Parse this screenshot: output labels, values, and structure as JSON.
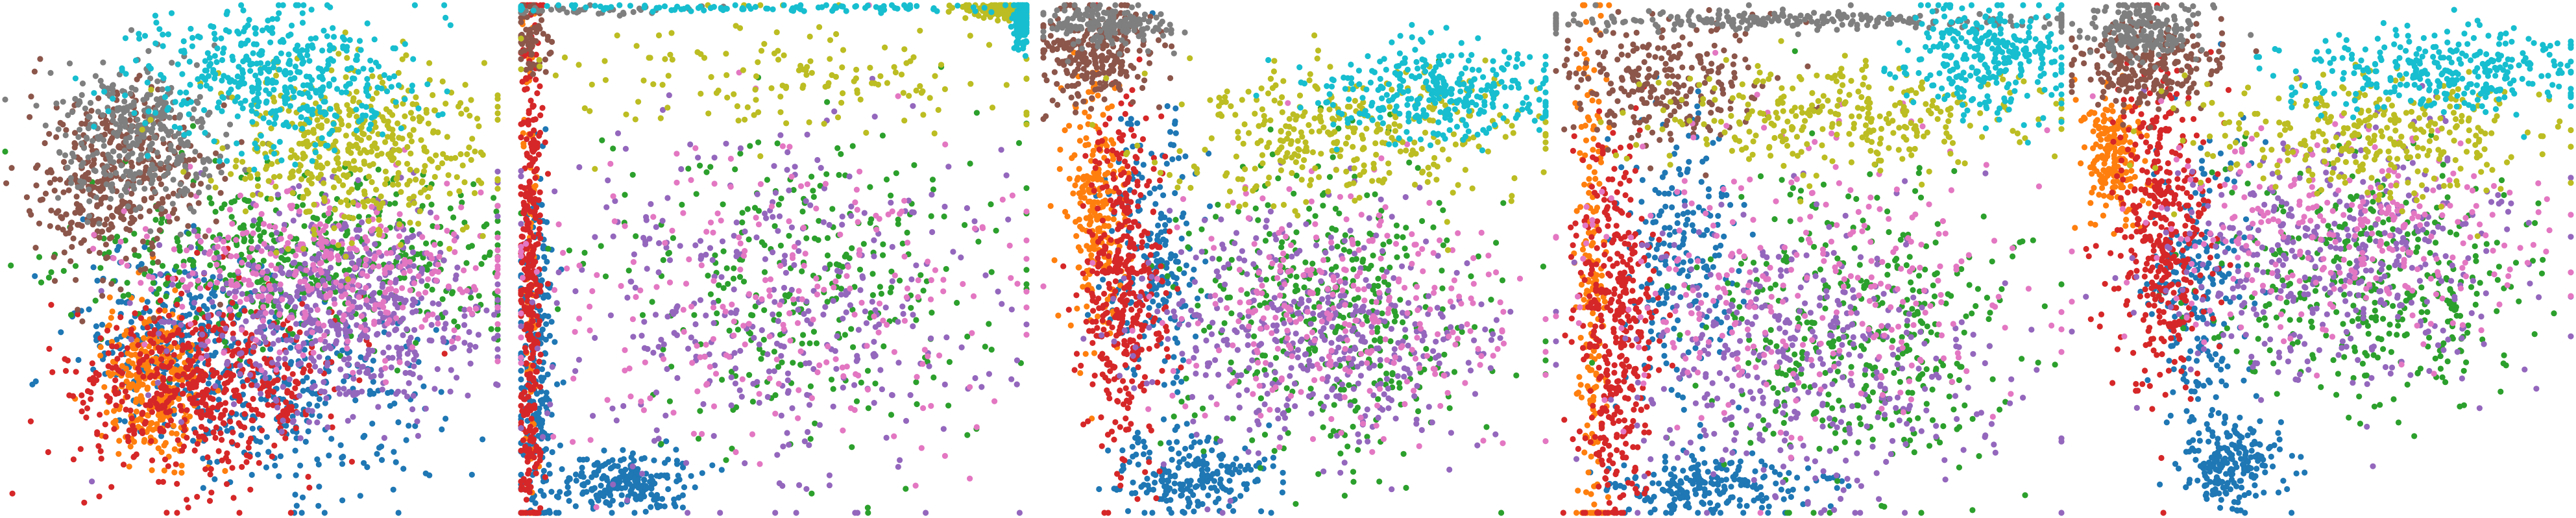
{
  "figure": {
    "title": "",
    "description_visible_text": ""
  },
  "colors": {
    "c0": "#1f77b4",
    "c1": "#ff7f0e",
    "c2": "#2ca02c",
    "c3": "#d62728",
    "c4": "#9467bd",
    "c5": "#8c564b",
    "c6": "#e377c2",
    "c7": "#7f7f7f",
    "c8": "#bcbd22",
    "c9": "#17becf"
  },
  "chart_data": [
    {
      "type": "scatter",
      "title": "",
      "xlabel": "",
      "ylabel": "",
      "axes_visible": false,
      "grid": false,
      "legend": "none",
      "xlim": [
        0,
        1
      ],
      "ylim": [
        0,
        1
      ],
      "series": [
        {
          "color": "#1f77b4",
          "count": 550,
          "regions": [
            {
              "cx": 0.58,
              "cy": 0.22,
              "sx": 0.15,
              "sy": 0.09
            },
            {
              "cx": 0.35,
              "cy": 0.36,
              "sx": 0.1,
              "sy": 0.08
            }
          ]
        },
        {
          "color": "#ff7f0e",
          "count": 300,
          "regions": [
            {
              "cx": 0.3,
              "cy": 0.25,
              "sx": 0.05,
              "sy": 0.08
            }
          ]
        },
        {
          "color": "#2ca02c",
          "count": 500,
          "regions": [
            {
              "cx": 0.62,
              "cy": 0.5,
              "sx": 0.22,
              "sy": 0.08
            }
          ]
        },
        {
          "color": "#d62728",
          "count": 550,
          "regions": [
            {
              "cx": 0.4,
              "cy": 0.25,
              "sx": 0.13,
              "sy": 0.09
            }
          ]
        },
        {
          "color": "#9467bd",
          "count": 600,
          "regions": [
            {
              "cx": 0.68,
              "cy": 0.4,
              "sx": 0.16,
              "sy": 0.11
            }
          ]
        },
        {
          "color": "#8c564b",
          "count": 400,
          "regions": [
            {
              "cx": 0.22,
              "cy": 0.66,
              "sx": 0.09,
              "sy": 0.08
            }
          ]
        },
        {
          "color": "#e377c2",
          "count": 350,
          "regions": [
            {
              "cx": 0.65,
              "cy": 0.48,
              "sx": 0.2,
              "sy": 0.08
            }
          ]
        },
        {
          "color": "#7f7f7f",
          "count": 350,
          "regions": [
            {
              "cx": 0.27,
              "cy": 0.74,
              "sx": 0.08,
              "sy": 0.07
            }
          ]
        },
        {
          "color": "#bcbd22",
          "count": 450,
          "regions": [
            {
              "cx": 0.7,
              "cy": 0.72,
              "sx": 0.14,
              "sy": 0.08
            }
          ]
        },
        {
          "color": "#17becf",
          "count": 450,
          "regions": [
            {
              "cx": 0.55,
              "cy": 0.86,
              "sx": 0.14,
              "sy": 0.07
            }
          ]
        }
      ]
    },
    {
      "type": "scatter",
      "title": "",
      "xlabel": "",
      "ylabel": "",
      "axes_visible": false,
      "grid": false,
      "legend": "none",
      "xlim": [
        0,
        1
      ],
      "ylim": [
        0,
        1
      ],
      "series": [
        {
          "color": "#1f77b4",
          "count": 450,
          "regions": [
            {
              "cx": 0.2,
              "cy": 0.06,
              "sx": 0.07,
              "sy": 0.03
            },
            {
              "cx": 0.03,
              "cy": 0.3,
              "sx": 0.02,
              "sy": 0.18
            }
          ]
        },
        {
          "color": "#ff7f0e",
          "count": 80,
          "regions": [
            {
              "cx": 0.015,
              "cy": 0.5,
              "sx": 0.008,
              "sy": 0.3
            }
          ]
        },
        {
          "color": "#2ca02c",
          "count": 300,
          "regions": [
            {
              "cx": 0.55,
              "cy": 0.45,
              "sx": 0.2,
              "sy": 0.15
            }
          ]
        },
        {
          "color": "#d62728",
          "count": 380,
          "regions": [
            {
              "cx": 0.02,
              "cy": 0.45,
              "sx": 0.012,
              "sy": 0.3
            }
          ]
        },
        {
          "color": "#9467bd",
          "count": 380,
          "regions": [
            {
              "cx": 0.48,
              "cy": 0.4,
              "sx": 0.22,
              "sy": 0.18
            }
          ]
        },
        {
          "color": "#8c564b",
          "count": 60,
          "regions": [
            {
              "cx": 0.02,
              "cy": 0.93,
              "sx": 0.02,
              "sy": 0.04
            }
          ]
        },
        {
          "color": "#e377c2",
          "count": 250,
          "regions": [
            {
              "cx": 0.5,
              "cy": 0.45,
              "sx": 0.25,
              "sy": 0.15
            }
          ]
        },
        {
          "color": "#7f7f7f",
          "count": 40,
          "regions": [
            {
              "cx": 0.15,
              "cy": 0.99,
              "sx": 0.12,
              "sy": 0.005
            }
          ]
        },
        {
          "color": "#bcbd22",
          "count": 300,
          "regions": [
            {
              "cx": 0.55,
              "cy": 0.85,
              "sx": 0.25,
              "sy": 0.06
            },
            {
              "cx": 0.95,
              "cy": 0.99,
              "sx": 0.04,
              "sy": 0.01
            }
          ]
        },
        {
          "color": "#17becf",
          "count": 220,
          "regions": [
            {
              "cx": 0.5,
              "cy": 0.995,
              "sx": 0.3,
              "sy": 0.004
            },
            {
              "cx": 0.99,
              "cy": 0.97,
              "sx": 0.01,
              "sy": 0.03
            }
          ]
        }
      ]
    },
    {
      "type": "scatter",
      "title": "",
      "xlabel": "",
      "ylabel": "",
      "axes_visible": false,
      "grid": false,
      "legend": "none",
      "xlim": [
        0,
        1
      ],
      "ylim": [
        0,
        1
      ],
      "series": [
        {
          "color": "#1f77b4",
          "count": 420,
          "regions": [
            {
              "cx": 0.3,
              "cy": 0.07,
              "sx": 0.08,
              "sy": 0.04
            },
            {
              "cx": 0.22,
              "cy": 0.5,
              "sx": 0.05,
              "sy": 0.15
            }
          ]
        },
        {
          "color": "#ff7f0e",
          "count": 250,
          "regions": [
            {
              "cx": 0.1,
              "cy": 0.6,
              "sx": 0.03,
              "sy": 0.12
            }
          ]
        },
        {
          "color": "#2ca02c",
          "count": 400,
          "regions": [
            {
              "cx": 0.58,
              "cy": 0.4,
              "sx": 0.15,
              "sy": 0.15
            }
          ]
        },
        {
          "color": "#d62728",
          "count": 400,
          "regions": [
            {
              "cx": 0.16,
              "cy": 0.45,
              "sx": 0.04,
              "sy": 0.18
            }
          ]
        },
        {
          "color": "#9467bd",
          "count": 450,
          "regions": [
            {
              "cx": 0.55,
              "cy": 0.35,
              "sx": 0.16,
              "sy": 0.12
            }
          ]
        },
        {
          "color": "#8c564b",
          "count": 250,
          "regions": [
            {
              "cx": 0.1,
              "cy": 0.9,
              "sx": 0.06,
              "sy": 0.05
            }
          ]
        },
        {
          "color": "#e377c2",
          "count": 300,
          "regions": [
            {
              "cx": 0.6,
              "cy": 0.4,
              "sx": 0.18,
              "sy": 0.12
            }
          ]
        },
        {
          "color": "#7f7f7f",
          "count": 180,
          "regions": [
            {
              "cx": 0.13,
              "cy": 0.96,
              "sx": 0.06,
              "sy": 0.02
            }
          ]
        },
        {
          "color": "#bcbd22",
          "count": 350,
          "regions": [
            {
              "cx": 0.6,
              "cy": 0.75,
              "sx": 0.18,
              "sy": 0.07
            }
          ]
        },
        {
          "color": "#17becf",
          "count": 320,
          "regions": [
            {
              "cx": 0.8,
              "cy": 0.83,
              "sx": 0.12,
              "sy": 0.05
            }
          ]
        }
      ]
    },
    {
      "type": "scatter",
      "title": "",
      "xlabel": "",
      "ylabel": "",
      "axes_visible": false,
      "grid": false,
      "legend": "none",
      "xlim": [
        0,
        1
      ],
      "ylim": [
        0,
        1
      ],
      "series": [
        {
          "color": "#1f77b4",
          "count": 420,
          "regions": [
            {
              "cx": 0.3,
              "cy": 0.05,
              "sx": 0.1,
              "sy": 0.03
            },
            {
              "cx": 0.25,
              "cy": 0.5,
              "sx": 0.06,
              "sy": 0.15
            }
          ]
        },
        {
          "color": "#ff7f0e",
          "count": 200,
          "regions": [
            {
              "cx": 0.07,
              "cy": 0.4,
              "sx": 0.015,
              "sy": 0.3
            }
          ]
        },
        {
          "color": "#2ca02c",
          "count": 400,
          "regions": [
            {
              "cx": 0.58,
              "cy": 0.35,
              "sx": 0.16,
              "sy": 0.15
            }
          ]
        },
        {
          "color": "#d62728",
          "count": 400,
          "regions": [
            {
              "cx": 0.12,
              "cy": 0.35,
              "sx": 0.04,
              "sy": 0.2
            }
          ]
        },
        {
          "color": "#9467bd",
          "count": 420,
          "regions": [
            {
              "cx": 0.5,
              "cy": 0.3,
              "sx": 0.18,
              "sy": 0.14
            }
          ]
        },
        {
          "color": "#8c564b",
          "count": 250,
          "regions": [
            {
              "cx": 0.22,
              "cy": 0.85,
              "sx": 0.1,
              "sy": 0.06
            }
          ]
        },
        {
          "color": "#e377c2",
          "count": 300,
          "regions": [
            {
              "cx": 0.5,
              "cy": 0.45,
              "sx": 0.22,
              "sy": 0.15
            }
          ]
        },
        {
          "color": "#7f7f7f",
          "count": 260,
          "regions": [
            {
              "cx": 0.45,
              "cy": 0.97,
              "sx": 0.35,
              "sy": 0.01
            }
          ]
        },
        {
          "color": "#bcbd22",
          "count": 300,
          "regions": [
            {
              "cx": 0.55,
              "cy": 0.78,
              "sx": 0.2,
              "sy": 0.05
            }
          ]
        },
        {
          "color": "#17becf",
          "count": 300,
          "regions": [
            {
              "cx": 0.85,
              "cy": 0.9,
              "sx": 0.08,
              "sy": 0.06
            }
          ]
        }
      ]
    },
    {
      "type": "scatter",
      "title": "",
      "xlabel": "",
      "ylabel": "",
      "axes_visible": false,
      "grid": false,
      "legend": "none",
      "xlim": [
        0,
        1
      ],
      "ylim": [
        0,
        1
      ],
      "series": [
        {
          "color": "#1f77b4",
          "count": 420,
          "regions": [
            {
              "cx": 0.32,
              "cy": 0.1,
              "sx": 0.05,
              "sy": 0.05
            },
            {
              "cx": 0.25,
              "cy": 0.45,
              "sx": 0.05,
              "sy": 0.15
            }
          ]
        },
        {
          "color": "#ff7f0e",
          "count": 200,
          "regions": [
            {
              "cx": 0.08,
              "cy": 0.7,
              "sx": 0.03,
              "sy": 0.06
            }
          ]
        },
        {
          "color": "#2ca02c",
          "count": 380,
          "regions": [
            {
              "cx": 0.6,
              "cy": 0.45,
              "sx": 0.15,
              "sy": 0.12
            }
          ]
        },
        {
          "color": "#d62728",
          "count": 400,
          "regions": [
            {
              "cx": 0.18,
              "cy": 0.55,
              "sx": 0.05,
              "sy": 0.15
            }
          ]
        },
        {
          "color": "#9467bd",
          "count": 420,
          "regions": [
            {
              "cx": 0.55,
              "cy": 0.5,
              "sx": 0.18,
              "sy": 0.12
            }
          ]
        },
        {
          "color": "#8c564b",
          "count": 250,
          "regions": [
            {
              "cx": 0.15,
              "cy": 0.88,
              "sx": 0.07,
              "sy": 0.04
            }
          ]
        },
        {
          "color": "#e377c2",
          "count": 300,
          "regions": [
            {
              "cx": 0.55,
              "cy": 0.55,
              "sx": 0.2,
              "sy": 0.1
            }
          ]
        },
        {
          "color": "#7f7f7f",
          "count": 200,
          "regions": [
            {
              "cx": 0.14,
              "cy": 0.95,
              "sx": 0.06,
              "sy": 0.03
            }
          ]
        },
        {
          "color": "#bcbd22",
          "count": 320,
          "regions": [
            {
              "cx": 0.6,
              "cy": 0.75,
              "sx": 0.18,
              "sy": 0.06
            }
          ]
        },
        {
          "color": "#17becf",
          "count": 320,
          "regions": [
            {
              "cx": 0.75,
              "cy": 0.87,
              "sx": 0.15,
              "sy": 0.04
            }
          ]
        }
      ]
    }
  ]
}
